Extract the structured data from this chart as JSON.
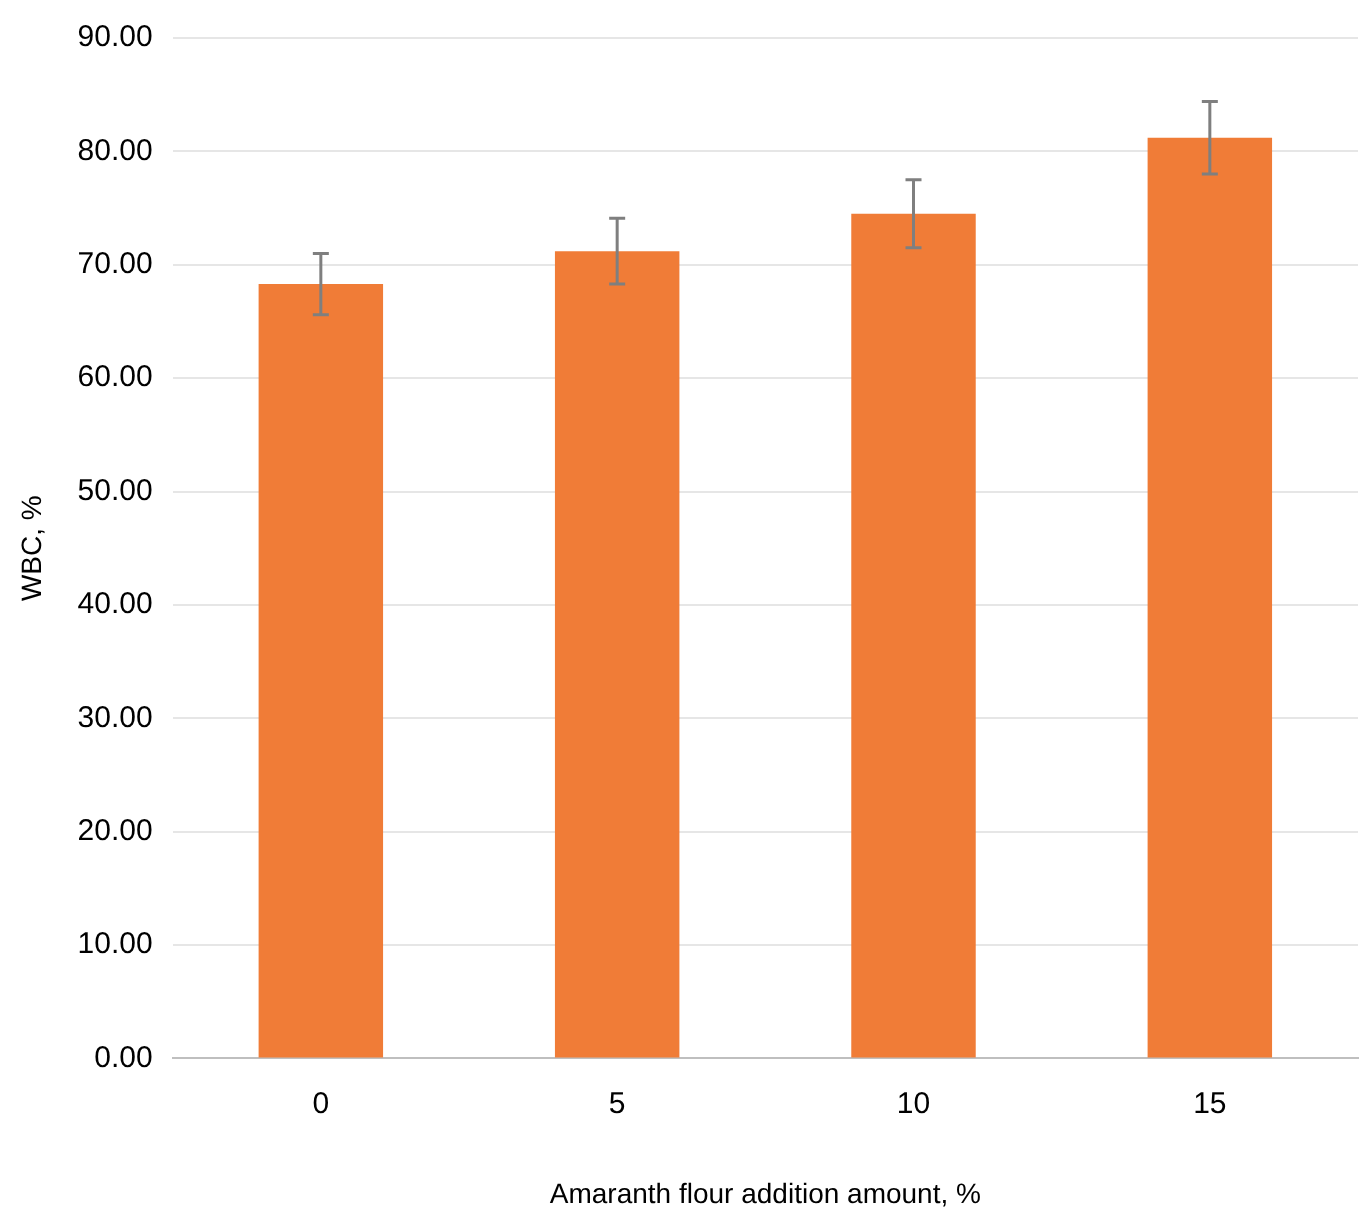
{
  "chart_data": {
    "type": "bar",
    "xlabel": "Amaranth flour addition amount, %",
    "ylabel": "WBC, %",
    "categories": [
      "0",
      "5",
      "10",
      "15"
    ],
    "series": [
      {
        "color": "#f07c37",
        "values": [
          68.3,
          71.2,
          74.5,
          81.2
        ],
        "errors": [
          2.7,
          2.9,
          3.0,
          3.2
        ]
      }
    ],
    "ylim": [
      0,
      90
    ],
    "yticks": [
      {
        "value": 0,
        "label": "0.00"
      },
      {
        "value": 10,
        "label": "10.00"
      },
      {
        "value": 20,
        "label": "20.00"
      },
      {
        "value": 30,
        "label": "30.00"
      },
      {
        "value": 40,
        "label": "40.00"
      },
      {
        "value": 50,
        "label": "50.00"
      },
      {
        "value": 60,
        "label": "60.00"
      },
      {
        "value": 70,
        "label": "70.00"
      },
      {
        "value": 80,
        "label": "80.00"
      },
      {
        "value": 90,
        "label": "90.00"
      }
    ],
    "grid": "y",
    "legend": false
  }
}
